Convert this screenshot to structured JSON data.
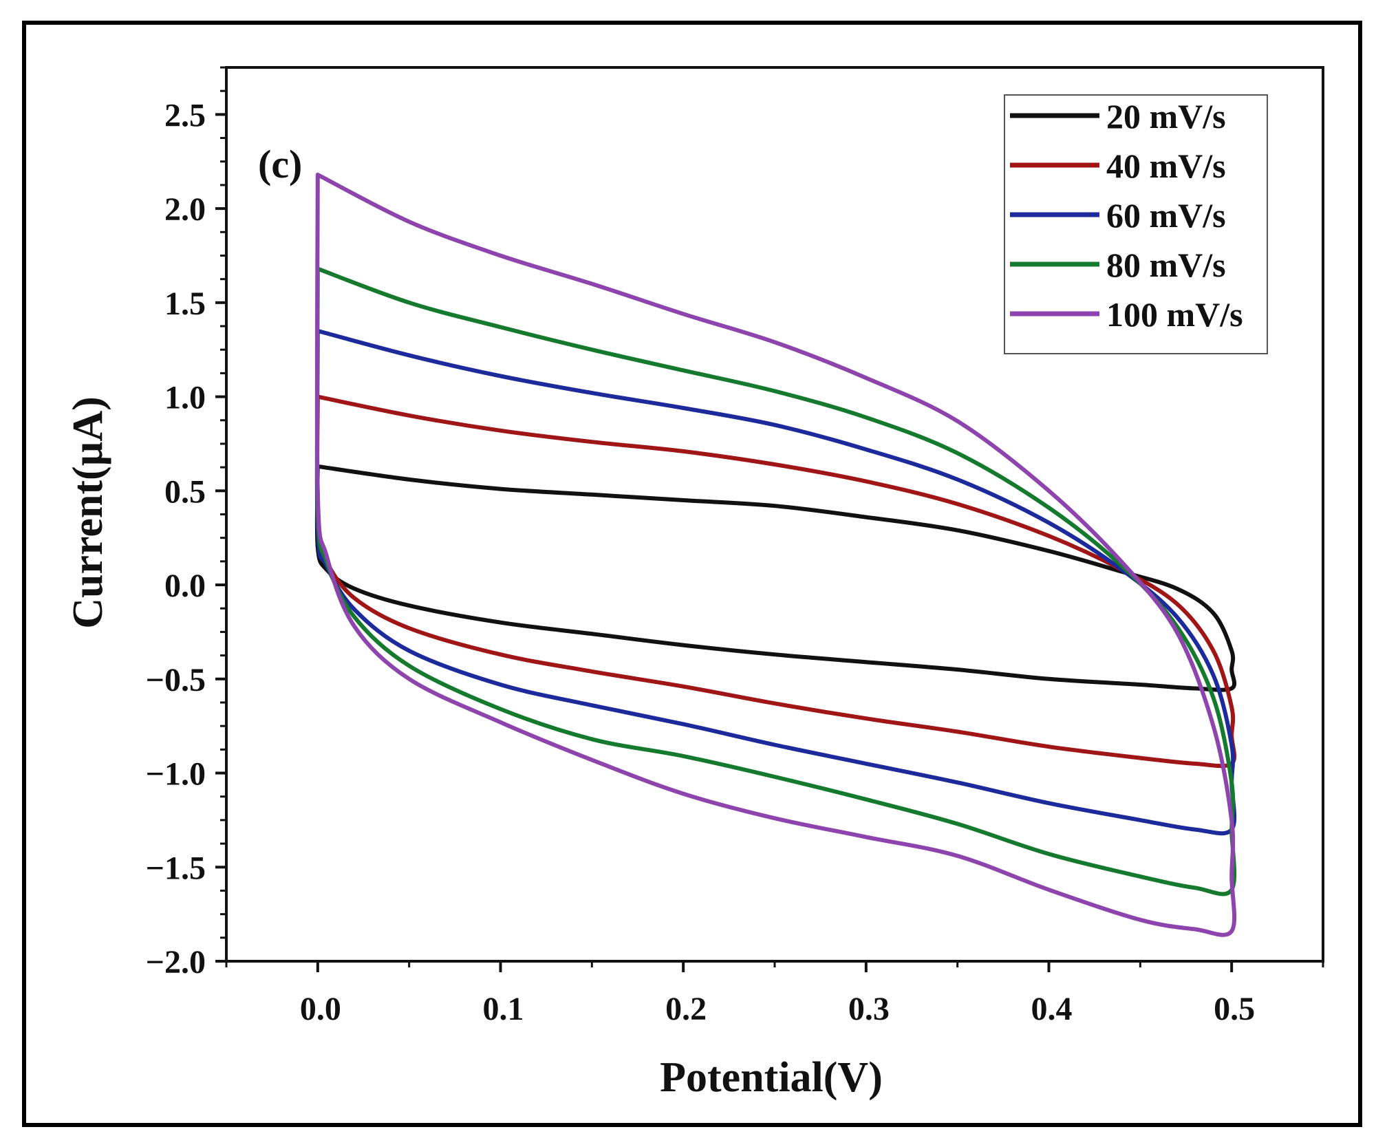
{
  "chart_data": {
    "type": "line",
    "panel_label": "(c)",
    "title": "",
    "xlabel": "Potential(V)",
    "ylabel": "Current(µA)",
    "xlim": [
      -0.05,
      0.55
    ],
    "ylim": [
      -2.0,
      2.75
    ],
    "x_ticks": [
      0.0,
      0.1,
      0.2,
      0.3,
      0.4,
      0.5
    ],
    "x_tick_labels": [
      "0.0",
      "0.1",
      "0.2",
      "0.3",
      "0.4",
      "0.5"
    ],
    "y_ticks": [
      -2.0,
      -1.5,
      -1.0,
      -0.5,
      0.0,
      0.5,
      1.0,
      1.5,
      2.0,
      2.5
    ],
    "y_tick_labels": [
      "−2.0",
      "−1.5",
      "−1.0",
      "−0.5",
      "0.0",
      "0.5",
      "1.0",
      "1.5",
      "2.0",
      "2.5"
    ],
    "grid": false,
    "legend_position": "top-right",
    "series": [
      {
        "name": "20 mV/s",
        "color": "#111111",
        "points": [
          [
            0.0,
            0.63
          ],
          [
            0.05,
            0.56
          ],
          [
            0.1,
            0.51
          ],
          [
            0.15,
            0.48
          ],
          [
            0.2,
            0.45
          ],
          [
            0.25,
            0.42
          ],
          [
            0.3,
            0.36
          ],
          [
            0.35,
            0.29
          ],
          [
            0.4,
            0.18
          ],
          [
            0.44,
            0.07
          ],
          [
            0.47,
            -0.02
          ],
          [
            0.49,
            -0.15
          ],
          [
            0.5,
            -0.35
          ],
          [
            0.5,
            -0.45
          ],
          [
            0.5,
            -0.55
          ],
          [
            0.48,
            -0.55
          ],
          [
            0.45,
            -0.53
          ],
          [
            0.4,
            -0.5
          ],
          [
            0.35,
            -0.45
          ],
          [
            0.3,
            -0.41
          ],
          [
            0.25,
            -0.37
          ],
          [
            0.2,
            -0.32
          ],
          [
            0.15,
            -0.26
          ],
          [
            0.1,
            -0.2
          ],
          [
            0.05,
            -0.11
          ],
          [
            0.02,
            -0.02
          ],
          [
            0.005,
            0.08
          ],
          [
            0.0,
            0.2
          ],
          [
            0.0,
            0.63
          ]
        ]
      },
      {
        "name": "40 mV/s",
        "color": "#a01616",
        "points": [
          [
            0.0,
            1.0
          ],
          [
            0.05,
            0.9
          ],
          [
            0.1,
            0.82
          ],
          [
            0.15,
            0.76
          ],
          [
            0.2,
            0.71
          ],
          [
            0.25,
            0.64
          ],
          [
            0.3,
            0.55
          ],
          [
            0.35,
            0.43
          ],
          [
            0.4,
            0.26
          ],
          [
            0.44,
            0.08
          ],
          [
            0.47,
            -0.1
          ],
          [
            0.49,
            -0.35
          ],
          [
            0.5,
            -0.65
          ],
          [
            0.5,
            -0.8
          ],
          [
            0.5,
            -0.95
          ],
          [
            0.48,
            -0.95
          ],
          [
            0.45,
            -0.92
          ],
          [
            0.4,
            -0.86
          ],
          [
            0.35,
            -0.78
          ],
          [
            0.3,
            -0.71
          ],
          [
            0.25,
            -0.63
          ],
          [
            0.2,
            -0.54
          ],
          [
            0.15,
            -0.46
          ],
          [
            0.1,
            -0.37
          ],
          [
            0.05,
            -0.23
          ],
          [
            0.02,
            -0.07
          ],
          [
            0.005,
            0.12
          ],
          [
            0.0,
            0.3
          ],
          [
            0.0,
            1.0
          ]
        ]
      },
      {
        "name": "60 mV/s",
        "color": "#1c2a9c",
        "points": [
          [
            0.0,
            1.35
          ],
          [
            0.05,
            1.22
          ],
          [
            0.1,
            1.11
          ],
          [
            0.15,
            1.02
          ],
          [
            0.2,
            0.94
          ],
          [
            0.25,
            0.85
          ],
          [
            0.3,
            0.72
          ],
          [
            0.35,
            0.56
          ],
          [
            0.4,
            0.33
          ],
          [
            0.44,
            0.08
          ],
          [
            0.47,
            -0.17
          ],
          [
            0.49,
            -0.48
          ],
          [
            0.5,
            -0.85
          ],
          [
            0.5,
            -1.05
          ],
          [
            0.5,
            -1.3
          ],
          [
            0.48,
            -1.3
          ],
          [
            0.45,
            -1.25
          ],
          [
            0.4,
            -1.16
          ],
          [
            0.35,
            -1.05
          ],
          [
            0.3,
            -0.95
          ],
          [
            0.25,
            -0.85
          ],
          [
            0.2,
            -0.74
          ],
          [
            0.15,
            -0.64
          ],
          [
            0.1,
            -0.53
          ],
          [
            0.05,
            -0.35
          ],
          [
            0.02,
            -0.13
          ],
          [
            0.005,
            0.1
          ],
          [
            0.0,
            0.3
          ],
          [
            0.0,
            1.35
          ]
        ]
      },
      {
        "name": "80 mV/s",
        "color": "#157a2e",
        "points": [
          [
            0.0,
            1.68
          ],
          [
            0.05,
            1.5
          ],
          [
            0.1,
            1.37
          ],
          [
            0.15,
            1.25
          ],
          [
            0.2,
            1.14
          ],
          [
            0.25,
            1.03
          ],
          [
            0.3,
            0.89
          ],
          [
            0.35,
            0.7
          ],
          [
            0.4,
            0.41
          ],
          [
            0.44,
            0.1
          ],
          [
            0.47,
            -0.22
          ],
          [
            0.49,
            -0.6
          ],
          [
            0.5,
            -1.05
          ],
          [
            0.5,
            -1.3
          ],
          [
            0.5,
            -1.62
          ],
          [
            0.48,
            -1.61
          ],
          [
            0.45,
            -1.55
          ],
          [
            0.4,
            -1.43
          ],
          [
            0.35,
            -1.27
          ],
          [
            0.3,
            -1.14
          ],
          [
            0.25,
            -1.02
          ],
          [
            0.2,
            -0.91
          ],
          [
            0.15,
            -0.82
          ],
          [
            0.1,
            -0.66
          ],
          [
            0.05,
            -0.43
          ],
          [
            0.02,
            -0.17
          ],
          [
            0.005,
            0.12
          ],
          [
            0.0,
            0.4
          ],
          [
            0.0,
            1.68
          ]
        ]
      },
      {
        "name": "100 mV/s",
        "color": "#8e44ad",
        "points": [
          [
            0.0,
            2.18
          ],
          [
            0.05,
            1.93
          ],
          [
            0.1,
            1.75
          ],
          [
            0.15,
            1.6
          ],
          [
            0.2,
            1.44
          ],
          [
            0.25,
            1.29
          ],
          [
            0.3,
            1.1
          ],
          [
            0.35,
            0.87
          ],
          [
            0.4,
            0.5
          ],
          [
            0.44,
            0.12
          ],
          [
            0.47,
            -0.25
          ],
          [
            0.49,
            -0.75
          ],
          [
            0.5,
            -1.25
          ],
          [
            0.5,
            -1.55
          ],
          [
            0.5,
            -1.84
          ],
          [
            0.48,
            -1.83
          ],
          [
            0.45,
            -1.78
          ],
          [
            0.4,
            -1.62
          ],
          [
            0.35,
            -1.44
          ],
          [
            0.3,
            -1.34
          ],
          [
            0.25,
            -1.24
          ],
          [
            0.2,
            -1.11
          ],
          [
            0.15,
            -0.93
          ],
          [
            0.1,
            -0.73
          ],
          [
            0.05,
            -0.5
          ],
          [
            0.02,
            -0.22
          ],
          [
            0.005,
            0.15
          ],
          [
            0.0,
            0.5
          ],
          [
            0.0,
            2.18
          ]
        ]
      }
    ]
  }
}
